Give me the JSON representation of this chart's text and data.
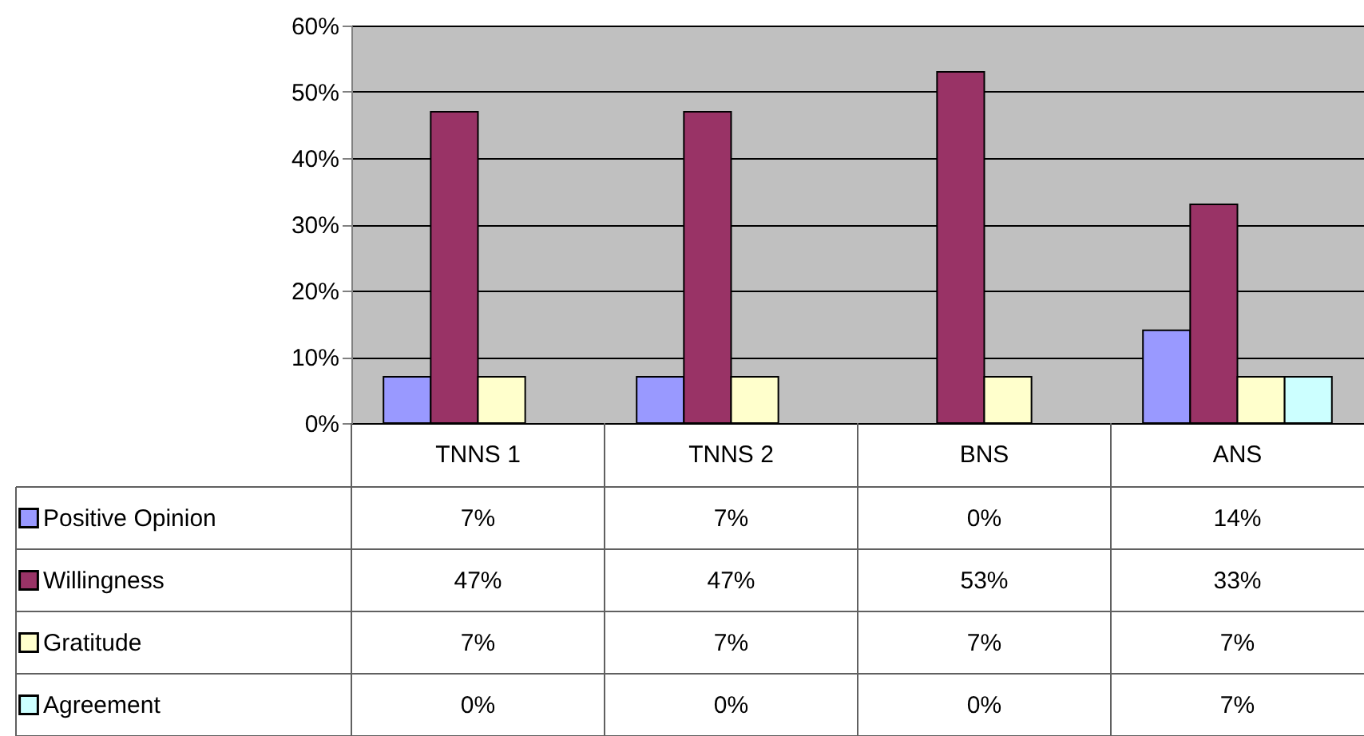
{
  "chart_data": {
    "type": "bar",
    "categories": [
      "TNNS 1",
      "TNNS 2",
      "BNS",
      "ANS"
    ],
    "series": [
      {
        "name": "Positive Opinion",
        "color": "#9999ff",
        "values": [
          7,
          7,
          0,
          14
        ],
        "value_labels": [
          "7%",
          "7%",
          "0%",
          "14%"
        ]
      },
      {
        "name": "Willingness",
        "color": "#993366",
        "values": [
          47,
          47,
          53,
          33
        ],
        "value_labels": [
          "47%",
          "47%",
          "53%",
          "33%"
        ]
      },
      {
        "name": "Gratitude",
        "color": "#ffffcc",
        "values": [
          7,
          7,
          7,
          7
        ],
        "value_labels": [
          "7%",
          "7%",
          "7%",
          "7%"
        ]
      },
      {
        "name": "Agreement",
        "color": "#ccffff",
        "values": [
          0,
          0,
          0,
          7
        ],
        "value_labels": [
          "0%",
          "0%",
          "0%",
          "7%"
        ]
      }
    ],
    "ylim": [
      0,
      60
    ],
    "yticks": [
      {
        "value": 0,
        "label": "0%"
      },
      {
        "value": 10,
        "label": "10%"
      },
      {
        "value": 20,
        "label": "20%"
      },
      {
        "value": 30,
        "label": "30%"
      },
      {
        "value": 40,
        "label": "40%"
      },
      {
        "value": 50,
        "label": "50%"
      },
      {
        "value": 60,
        "label": "60%"
      }
    ],
    "grid": "y",
    "legend": "bottom left"
  }
}
